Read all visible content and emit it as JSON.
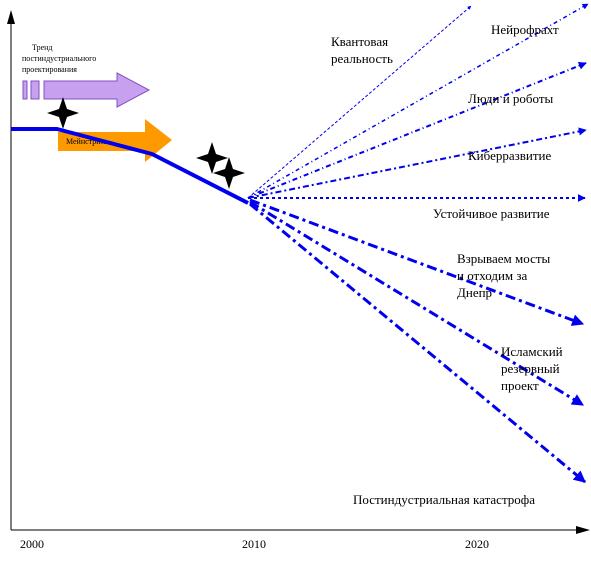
{
  "axis": {
    "x_ticks": [
      "2000",
      "2010",
      "2020"
    ]
  },
  "arrows": {
    "trend_label": [
      "Тренд",
      "постиндустриального",
      "проектирования"
    ],
    "mainstream_label": "Мейнстрим"
  },
  "scenarios": [
    {
      "label": [
        "Квантовая",
        "реальность"
      ]
    },
    {
      "label": [
        "Нейрофрахт"
      ]
    },
    {
      "label": [
        "Люди и роботы"
      ]
    },
    {
      "label": [
        "Киберразвитие"
      ]
    },
    {
      "label": [
        "Устойчивое развитие"
      ]
    },
    {
      "label": [
        "Взрываем мосты",
        "и отходим за",
        "Днепр"
      ]
    },
    {
      "label": [
        "Исламский",
        "резервный",
        "проект"
      ]
    },
    {
      "label": [
        "Постиндустриальная катастрофа"
      ]
    }
  ],
  "colors": {
    "line_blue": "#0000ee",
    "trend_arrow": "#c8a0f0",
    "trend_arrow_edge": "#8050c0",
    "mainstream_arrow": "#ff9900",
    "event_star": "#000000"
  },
  "icons": [
    "event-star-icon",
    "event-star-icon",
    "event-star-icon"
  ]
}
